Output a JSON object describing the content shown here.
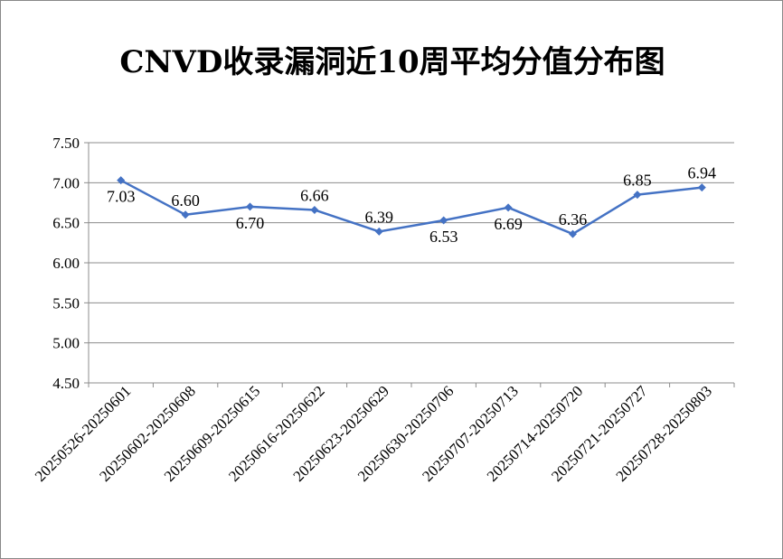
{
  "chart_data": {
    "type": "line",
    "title": "CNVD收录漏洞近10周平均分值分布图",
    "categories": [
      "20250526-20250601",
      "20250602-20250608",
      "20250609-20250615",
      "20250616-20250622",
      "20250623-20250629",
      "20250630-20250706",
      "20250707-20250713",
      "20250714-20250720",
      "20250721-20250727",
      "20250728-20250803"
    ],
    "values": [
      7.03,
      6.6,
      6.7,
      6.66,
      6.39,
      6.53,
      6.69,
      6.36,
      6.85,
      6.94
    ],
    "data_labels": [
      "7.03",
      "6.60",
      "6.70",
      "6.66",
      "6.39",
      "6.53",
      "6.69",
      "6.36",
      "6.85",
      "6.94"
    ],
    "label_position": [
      "below",
      "above",
      "below",
      "above",
      "above",
      "below",
      "below",
      "above",
      "above",
      "above"
    ],
    "ylim": [
      4.5,
      7.5
    ],
    "yticks": [
      4.5,
      5.0,
      5.5,
      6.0,
      6.5,
      7.0,
      7.5
    ],
    "ytick_labels": [
      "4.50",
      "5.00",
      "5.50",
      "6.00",
      "6.50",
      "7.00",
      "7.50"
    ],
    "grid": true,
    "legend": "none",
    "line_color": "#4472C4"
  }
}
